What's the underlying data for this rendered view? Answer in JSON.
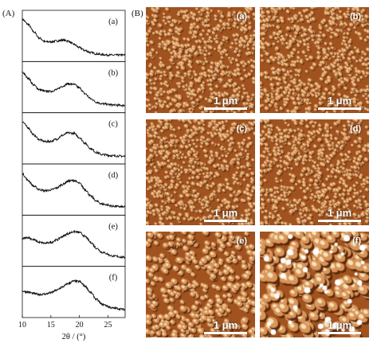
{
  "panel_a_label": "(A)",
  "panel_b_label": "(B)",
  "xrd": {
    "xlabel": "2θ / (°)",
    "xticks": [
      "10",
      "15",
      "20",
      "25"
    ],
    "xlim": [
      10,
      28
    ],
    "samples": [
      {
        "label": "(a)",
        "profile": [
          [
            10,
            0.9
          ],
          [
            11,
            0.78
          ],
          [
            12,
            0.6
          ],
          [
            13,
            0.45
          ],
          [
            14,
            0.36
          ],
          [
            15,
            0.36
          ],
          [
            16,
            0.38
          ],
          [
            17,
            0.4
          ],
          [
            18,
            0.38
          ],
          [
            19,
            0.3
          ],
          [
            20,
            0.22
          ],
          [
            21,
            0.15
          ],
          [
            22,
            0.1
          ],
          [
            23,
            0.07
          ],
          [
            24,
            0.05
          ],
          [
            26,
            0.04
          ],
          [
            28,
            0.04
          ]
        ]
      },
      {
        "label": "(b)",
        "profile": [
          [
            10,
            0.86
          ],
          [
            11,
            0.72
          ],
          [
            12,
            0.55
          ],
          [
            13,
            0.44
          ],
          [
            14,
            0.4
          ],
          [
            15,
            0.4
          ],
          [
            16,
            0.44
          ],
          [
            17,
            0.52
          ],
          [
            18,
            0.58
          ],
          [
            19,
            0.57
          ],
          [
            20,
            0.48
          ],
          [
            21,
            0.34
          ],
          [
            22,
            0.22
          ],
          [
            23,
            0.14
          ],
          [
            24,
            0.1
          ],
          [
            26,
            0.07
          ],
          [
            28,
            0.06
          ]
        ]
      },
      {
        "label": "(c)",
        "profile": [
          [
            10,
            0.9
          ],
          [
            11,
            0.76
          ],
          [
            12,
            0.58
          ],
          [
            13,
            0.47
          ],
          [
            14,
            0.42
          ],
          [
            15,
            0.43
          ],
          [
            16,
            0.48
          ],
          [
            17,
            0.57
          ],
          [
            18,
            0.63
          ],
          [
            19,
            0.62
          ],
          [
            20,
            0.52
          ],
          [
            21,
            0.38
          ],
          [
            22,
            0.25
          ],
          [
            23,
            0.16
          ],
          [
            24,
            0.11
          ],
          [
            26,
            0.08
          ],
          [
            28,
            0.07
          ]
        ]
      },
      {
        "label": "(d)",
        "profile": [
          [
            10,
            0.88
          ],
          [
            11,
            0.72
          ],
          [
            12,
            0.58
          ],
          [
            13,
            0.5
          ],
          [
            14,
            0.47
          ],
          [
            15,
            0.49
          ],
          [
            16,
            0.54
          ],
          [
            17,
            0.62
          ],
          [
            18,
            0.7
          ],
          [
            19,
            0.72
          ],
          [
            20,
            0.65
          ],
          [
            21,
            0.5
          ],
          [
            22,
            0.34
          ],
          [
            23,
            0.22
          ],
          [
            24,
            0.15
          ],
          [
            26,
            0.1
          ],
          [
            28,
            0.08
          ]
        ]
      },
      {
        "label": "(e)",
        "profile": [
          [
            10,
            0.55
          ],
          [
            11,
            0.58
          ],
          [
            12,
            0.52
          ],
          [
            13,
            0.46
          ],
          [
            14,
            0.44
          ],
          [
            15,
            0.46
          ],
          [
            16,
            0.52
          ],
          [
            17,
            0.6
          ],
          [
            18,
            0.67
          ],
          [
            19,
            0.72
          ],
          [
            20,
            0.7
          ],
          [
            21,
            0.6
          ],
          [
            22,
            0.46
          ],
          [
            23,
            0.32
          ],
          [
            24,
            0.22
          ],
          [
            26,
            0.13
          ],
          [
            28,
            0.1
          ]
        ]
      },
      {
        "label": "(f)",
        "profile": [
          [
            10,
            0.52
          ],
          [
            11,
            0.5
          ],
          [
            12,
            0.46
          ],
          [
            13,
            0.44
          ],
          [
            14,
            0.45
          ],
          [
            15,
            0.48
          ],
          [
            16,
            0.54
          ],
          [
            17,
            0.62
          ],
          [
            18,
            0.7
          ],
          [
            19,
            0.76
          ],
          [
            20,
            0.75
          ],
          [
            21,
            0.64
          ],
          [
            22,
            0.48
          ],
          [
            23,
            0.32
          ],
          [
            24,
            0.2
          ],
          [
            26,
            0.11
          ],
          [
            28,
            0.08
          ]
        ]
      }
    ]
  },
  "afm": [
    {
      "label": "(a)",
      "scale": "1 μm"
    },
    {
      "label": "(b)",
      "scale": "1 μm"
    },
    {
      "label": "(c)",
      "scale": "1 μm"
    },
    {
      "label": "(d)",
      "scale": "1 μm"
    },
    {
      "label": "(e)",
      "scale": "1 μm"
    },
    {
      "label": "(f)",
      "scale": "1 μm"
    }
  ],
  "colors": {
    "afm_dark": "#5c2a0c",
    "afm_mid": "#a0521f",
    "afm_light": "#d9955a",
    "afm_highlight": "#f6e2b8",
    "line": "#111111"
  }
}
